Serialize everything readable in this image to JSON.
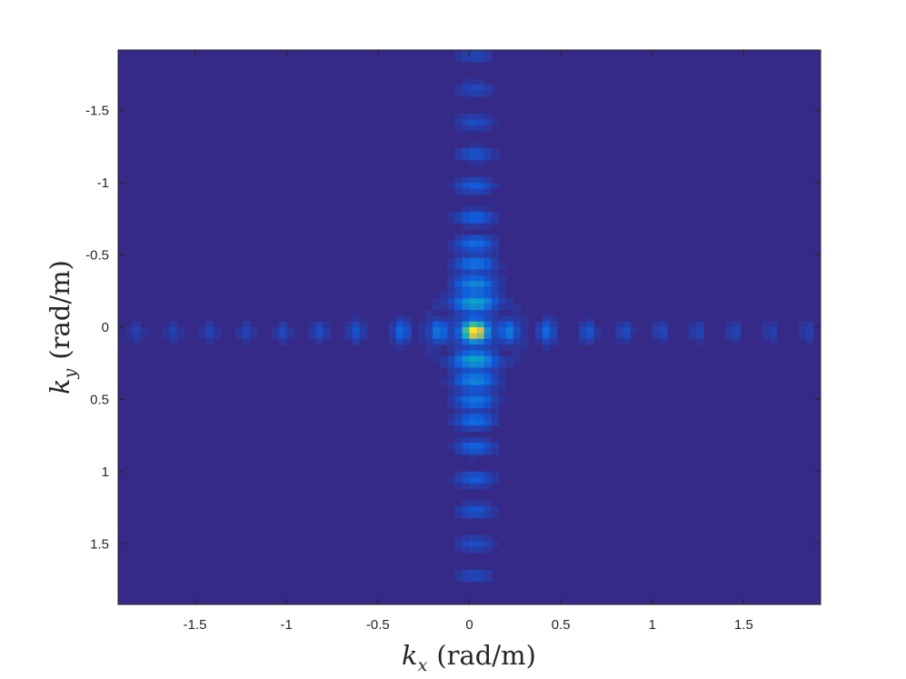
{
  "chart_data": {
    "type": "heatmap",
    "title": "",
    "xlabel": {
      "symbol": "k",
      "subscript": "x",
      "unit": "(rad/m)"
    },
    "ylabel": {
      "symbol": "k",
      "subscript": "y",
      "unit": "(rad/m)"
    },
    "xlim": [
      -1.92,
      1.92
    ],
    "ylim": [
      -1.92,
      1.92
    ],
    "y_direction": "reversed",
    "x_ticks": [
      -1.5,
      -1,
      -0.5,
      0,
      0.5,
      1,
      1.5
    ],
    "x_tick_labels": [
      "-1.5",
      "-1",
      "-0.5",
      "0",
      "0.5",
      "1",
      "1.5"
    ],
    "y_ticks": [
      -1.5,
      -1,
      -0.5,
      0,
      0.5,
      1,
      1.5
    ],
    "y_tick_labels": [
      "-1.5",
      "-1",
      "-0.5",
      "0",
      "0.5",
      "1",
      "1.5"
    ],
    "grid": false,
    "colorbar": false,
    "colormap": "parula",
    "colormap_stops": [
      "#352a87",
      "#0f5cdd",
      "#1481d6",
      "#06a4ca",
      "#2eb7a4",
      "#87bf77",
      "#d1bb59",
      "#fec832",
      "#f9fb0e"
    ],
    "peak_location": {
      "kx": 0.03,
      "ky": 0.03
    },
    "peak_value": 1.0,
    "background_value": 0.0,
    "pattern": "sinc-like cross: central peak with side lobes along kx = 0 and ky = 0",
    "ky_axis_lobes": [
      {
        "ky": -1.88,
        "value": 0.07
      },
      {
        "ky": -1.65,
        "value": 0.08
      },
      {
        "ky": -1.42,
        "value": 0.09
      },
      {
        "ky": -1.2,
        "value": 0.11
      },
      {
        "ky": -0.98,
        "value": 0.13
      },
      {
        "ky": -0.76,
        "value": 0.15
      },
      {
        "ky": -0.58,
        "value": 0.18
      },
      {
        "ky": -0.44,
        "value": 0.21
      },
      {
        "ky": -0.3,
        "value": 0.27
      },
      {
        "ky": -0.17,
        "value": 0.4
      },
      {
        "ky": 0.23,
        "value": 0.4
      },
      {
        "ky": 0.37,
        "value": 0.27
      },
      {
        "ky": 0.51,
        "value": 0.21
      },
      {
        "ky": 0.65,
        "value": 0.18
      },
      {
        "ky": 0.83,
        "value": 0.15
      },
      {
        "ky": 1.05,
        "value": 0.13
      },
      {
        "ky": 1.27,
        "value": 0.11
      },
      {
        "ky": 1.5,
        "value": 0.09
      },
      {
        "ky": 1.72,
        "value": 0.08
      }
    ],
    "kx_axis_lobes": [
      {
        "kx": -1.82,
        "value": 0.06
      },
      {
        "kx": -1.62,
        "value": 0.06
      },
      {
        "kx": -1.42,
        "value": 0.07
      },
      {
        "kx": -1.22,
        "value": 0.07
      },
      {
        "kx": -1.02,
        "value": 0.08
      },
      {
        "kx": -0.82,
        "value": 0.09
      },
      {
        "kx": -0.62,
        "value": 0.11
      },
      {
        "kx": -0.37,
        "value": 0.16
      },
      {
        "kx": -0.17,
        "value": 0.22
      },
      {
        "kx": 0.22,
        "value": 0.22
      },
      {
        "kx": 0.42,
        "value": 0.16
      },
      {
        "kx": 0.65,
        "value": 0.11
      },
      {
        "kx": 0.85,
        "value": 0.09
      },
      {
        "kx": 1.05,
        "value": 0.08
      },
      {
        "kx": 1.25,
        "value": 0.07
      },
      {
        "kx": 1.45,
        "value": 0.07
      },
      {
        "kx": 1.65,
        "value": 0.06
      },
      {
        "kx": 1.85,
        "value": 0.06
      }
    ]
  }
}
